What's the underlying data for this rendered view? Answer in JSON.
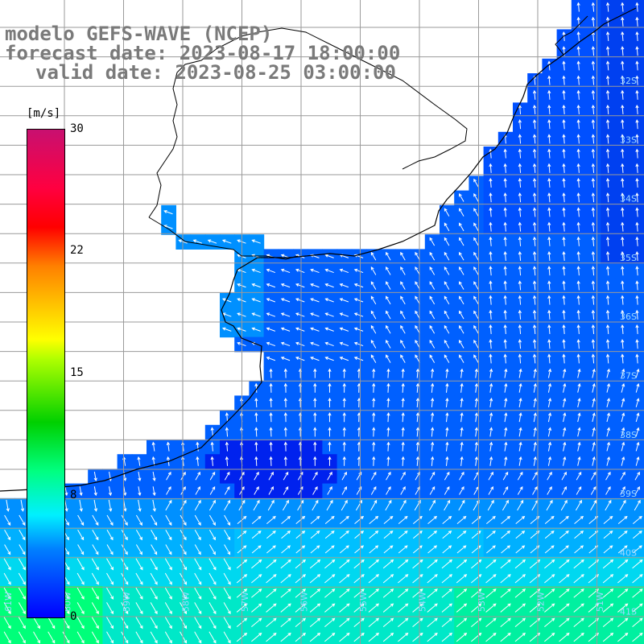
{
  "titles": {
    "model": "modelo GEFS-WAVE (NCEP)",
    "forecast": "forecast date: 2023-08-17 18:00:00",
    "valid": "valid date: 2023-08-25 03:00:00"
  },
  "colorbar": {
    "unit": "[m/s]",
    "ticks": [
      "30",
      "22",
      "15",
      "8",
      "0"
    ],
    "colors": [
      "#0000ff",
      "#0080ff",
      "#00f0ff",
      "#00ff80",
      "#00d000",
      "#ffff00",
      "#ff8000",
      "#ff0000",
      "#c81070"
    ]
  },
  "axis_labels": {
    "lat": [
      "32S",
      "33S",
      "34S",
      "35S",
      "36S",
      "37S",
      "38S",
      "39S",
      "40S",
      "41S"
    ],
    "lon": [
      "61W",
      "60W",
      "59W",
      "58W",
      "57W",
      "56W",
      "55W",
      "54W",
      "53W",
      "52W",
      "51W"
    ]
  },
  "colors": {
    "land": "#ffffff",
    "grid": "#a0a0a0",
    "coast": "#000000",
    "arrow": "#ffffff",
    "deep_blue": "#0022ee",
    "mid_blue": "#0066ff",
    "light_cyan": "#00c8ff",
    "green": "#00ff7a"
  }
}
